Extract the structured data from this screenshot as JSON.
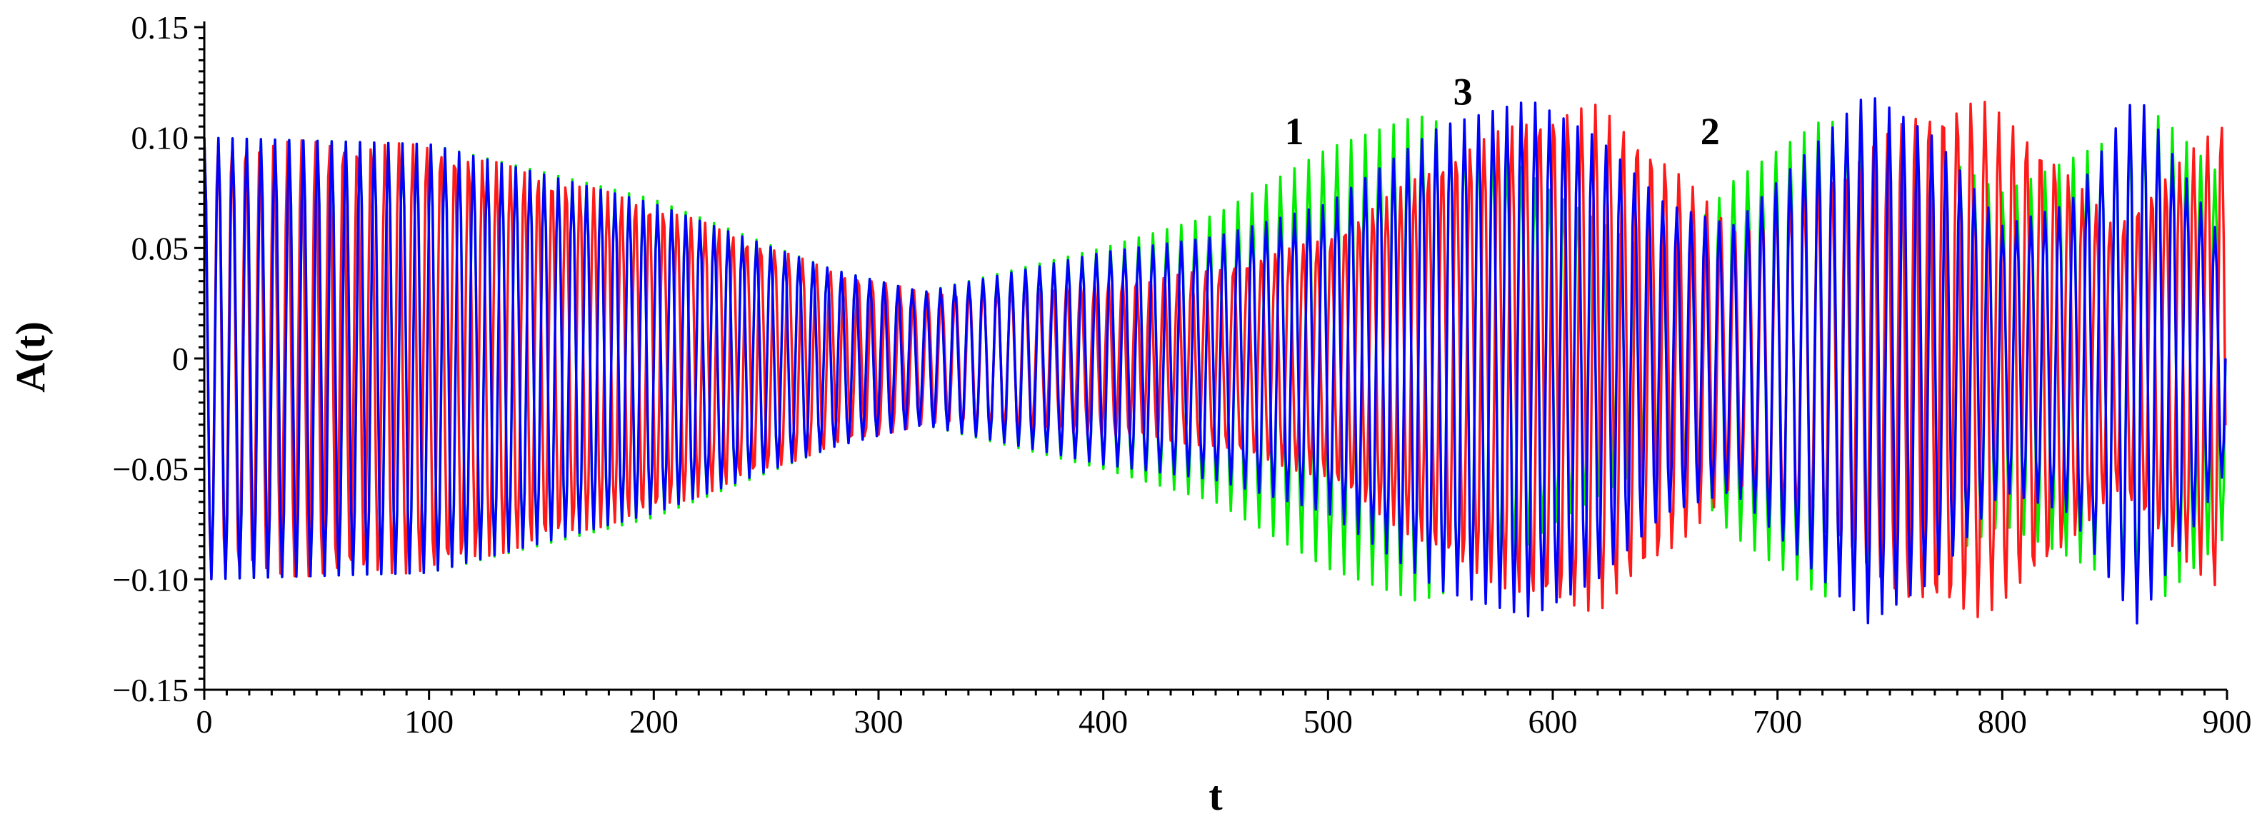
{
  "chart_data": {
    "type": "line",
    "title": "",
    "xlabel": "t",
    "ylabel": "A(t)",
    "xlim": [
      0,
      900
    ],
    "ylim": [
      -0.15,
      0.15
    ],
    "grid": false,
    "x_ticks": [
      0,
      100,
      200,
      300,
      400,
      500,
      600,
      700,
      800,
      900
    ],
    "x_tick_labels": [
      "0",
      "100",
      "200",
      "300",
      "400",
      "500",
      "600",
      "700",
      "800",
      "900"
    ],
    "y_ticks": [
      0.15,
      0.1,
      0.05,
      0,
      -0.05,
      -0.1,
      -0.15
    ],
    "y_tick_labels": [
      "0.15",
      "0.10",
      "0.05",
      "0",
      "−0.05",
      "−0.10",
      "−0.15"
    ],
    "oscillation_period": 6.3,
    "series": [
      {
        "label": "1",
        "color": "#00ee00",
        "envelope_t": [
          0,
          100,
          200,
          280,
          320,
          400,
          450,
          500,
          540,
          570,
          600,
          640,
          660,
          680,
          720,
          760,
          800,
          840,
          870,
          900
        ],
        "envelope_upper": [
          0.1,
          0.097,
          0.072,
          0.04,
          0.03,
          0.05,
          0.065,
          0.095,
          0.11,
          0.1,
          0.075,
          0.05,
          0.055,
          0.08,
          0.108,
          0.1,
          0.075,
          0.095,
          0.11,
          0.08
        ],
        "envelope_lower": [
          -0.1,
          -0.097,
          -0.072,
          -0.04,
          -0.03,
          -0.05,
          -0.065,
          -0.095,
          -0.11,
          -0.1,
          -0.075,
          -0.05,
          -0.055,
          -0.08,
          -0.108,
          -0.1,
          -0.075,
          -0.095,
          -0.11,
          -0.08
        ],
        "label_at": [
          485,
          0.097
        ]
      },
      {
        "label": "2",
        "color": "#ff1a1a",
        "envelope_t": [
          0,
          100,
          200,
          280,
          320,
          400,
          450,
          500,
          550,
          590,
          620,
          650,
          680,
          720,
          760,
          790,
          820,
          850,
          880,
          900
        ],
        "envelope_upper": [
          0.1,
          0.097,
          0.07,
          0.04,
          0.03,
          0.035,
          0.04,
          0.055,
          0.09,
          0.11,
          0.115,
          0.09,
          0.06,
          0.08,
          0.11,
          0.118,
          0.095,
          0.06,
          0.09,
          0.11
        ],
        "envelope_lower": [
          -0.1,
          -0.097,
          -0.07,
          -0.04,
          -0.03,
          -0.035,
          -0.04,
          -0.055,
          -0.09,
          -0.11,
          -0.115,
          -0.09,
          -0.06,
          -0.08,
          -0.11,
          -0.118,
          -0.095,
          -0.06,
          -0.09,
          -0.11
        ],
        "label_at": [
          670,
          0.097
        ]
      },
      {
        "label": "3",
        "color": "#0000ff",
        "envelope_t": [
          0,
          100,
          200,
          280,
          320,
          400,
          450,
          500,
          550,
          590,
          620,
          650,
          680,
          710,
          740,
          770,
          800,
          830,
          860,
          900
        ],
        "envelope_upper": [
          0.1,
          0.097,
          0.07,
          0.04,
          0.03,
          0.048,
          0.055,
          0.07,
          0.105,
          0.117,
          0.1,
          0.07,
          0.06,
          0.09,
          0.12,
          0.1,
          0.06,
          0.07,
          0.12,
          0.05
        ],
        "envelope_lower": [
          -0.1,
          -0.097,
          -0.07,
          -0.04,
          -0.03,
          -0.048,
          -0.055,
          -0.07,
          -0.105,
          -0.117,
          -0.1,
          -0.07,
          -0.06,
          -0.09,
          -0.12,
          -0.1,
          -0.06,
          -0.07,
          -0.12,
          -0.05
        ],
        "label_at": [
          560,
          0.115
        ]
      }
    ]
  }
}
